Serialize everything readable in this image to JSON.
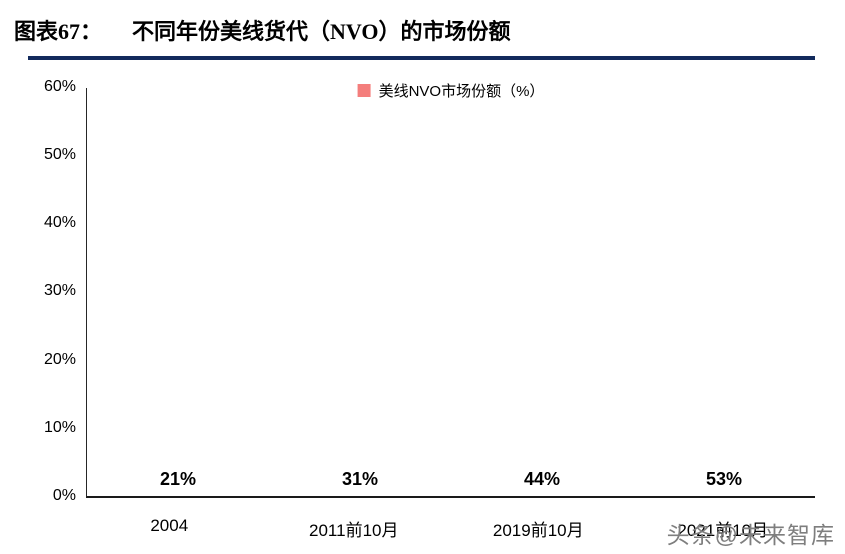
{
  "header": {
    "label": "图表67：",
    "title": "不同年份美线货代（NVO）的市场份额"
  },
  "chart_data": {
    "type": "bar",
    "legend": "美线NVO市场份额（%）",
    "legend_position": "top-center",
    "categories": [
      "2004",
      "2011前10月",
      "2019前10月",
      "2021前10月"
    ],
    "values": [
      21,
      31,
      44,
      53
    ],
    "value_labels": [
      "21%",
      "31%",
      "44%",
      "53%"
    ],
    "ylim": [
      0,
      60
    ],
    "yticks": [
      "60%",
      "50%",
      "40%",
      "30%",
      "20%",
      "10%",
      "0%"
    ],
    "grid": false
  },
  "watermark": "头条@未来智库",
  "colors": {
    "bar": "#F47E7C",
    "title_rule": "#122A5C",
    "axis": "#1A1A1A",
    "watermark": "#7E7E7E"
  }
}
